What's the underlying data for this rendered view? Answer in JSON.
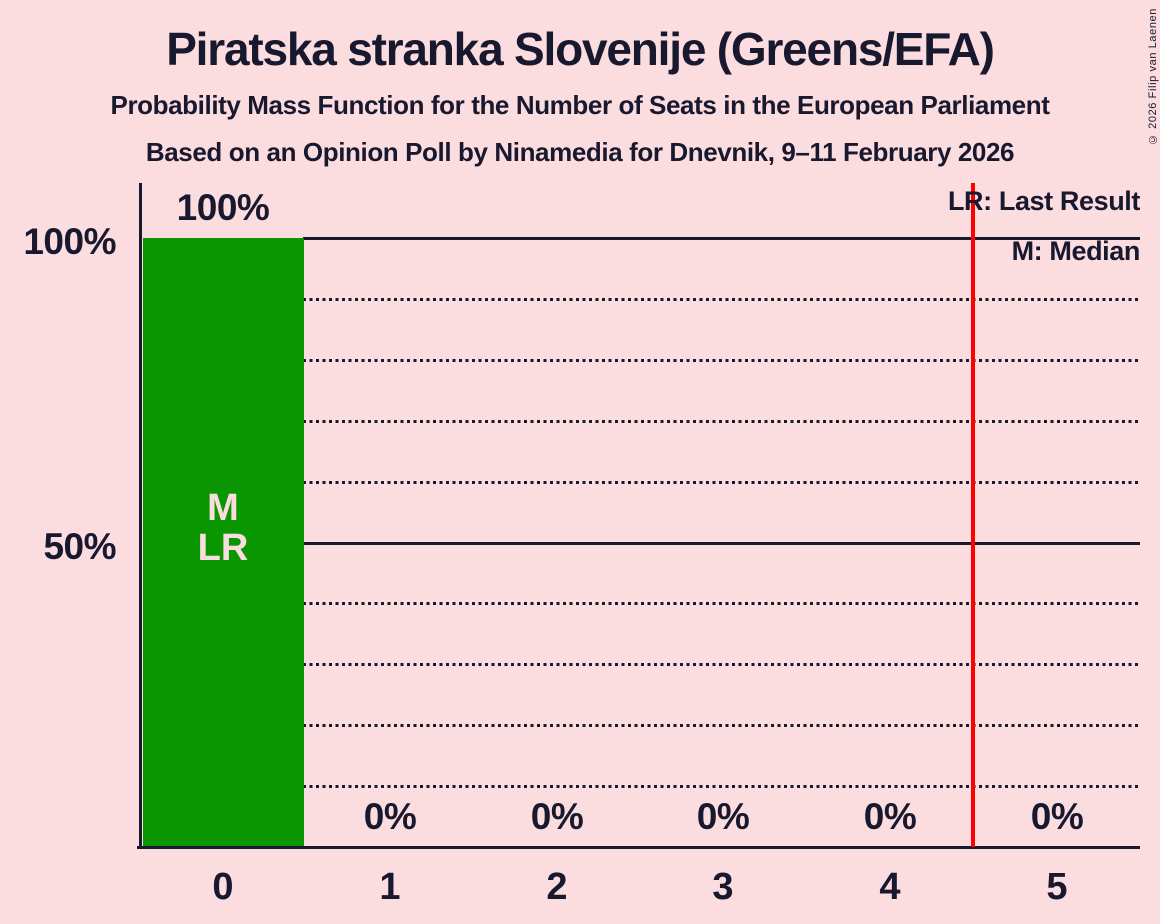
{
  "header": {
    "title": "Piratska stranka Slovenije (Greens/EFA)",
    "subtitle1": "Probability Mass Function for the Number of Seats in the European Parliament",
    "subtitle2": "Based on an Opinion Poll by Ninamedia for Dnevnik, 9–11 February 2026"
  },
  "legend": {
    "lr_label": "LR: Last Result",
    "m_label": "M: Median"
  },
  "copyright": "© 2026 Filip van Laenen",
  "colors": {
    "background": "#FBDCDF",
    "text": "#18182F",
    "bar": "#0A9600",
    "majority_line": "#FF0000"
  },
  "chart_data": {
    "type": "bar",
    "title": "Probability Mass Function for the Number of Seats in the European Parliament",
    "xlabel": "",
    "ylabel": "",
    "categories": [
      "0",
      "1",
      "2",
      "3",
      "4",
      "5"
    ],
    "values": [
      100,
      0,
      0,
      0,
      0,
      0
    ],
    "bar_labels": [
      "100%",
      "0%",
      "0%",
      "0%",
      "0%",
      "0%"
    ],
    "ylim": [
      0,
      100
    ],
    "y_ticks": [
      {
        "label": "100%",
        "pct": 100
      },
      {
        "label": "50%",
        "pct": 50
      }
    ],
    "gridlines": {
      "solid_pct": [
        100,
        50
      ],
      "dotted_pct": [
        90,
        80,
        70,
        60,
        40,
        30,
        20,
        10
      ]
    },
    "majority_line": {
      "position": 4.5
    },
    "bar_annotations": {
      "category": 0,
      "lines": [
        "M",
        "LR"
      ]
    },
    "median_seats": "0",
    "last_result_seats": "0",
    "legend_position": "top-right",
    "grid": "horizontal-dotted"
  }
}
